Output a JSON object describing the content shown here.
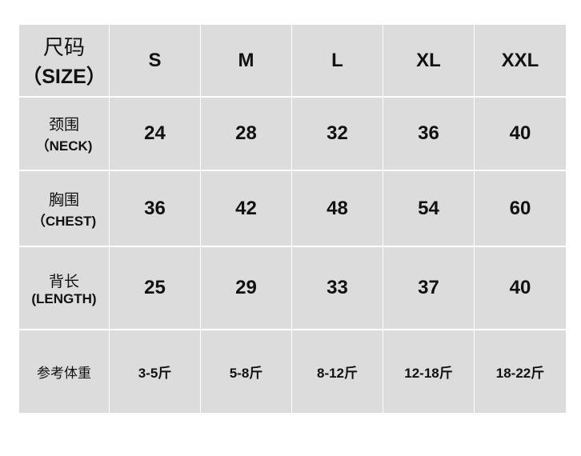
{
  "header": {
    "label_cn": "尺码",
    "label_en": "（SIZE）",
    "sizes": [
      "S",
      "M",
      "L",
      "XL",
      "XXL"
    ]
  },
  "rows": [
    {
      "label_cn": "颈围",
      "label_en": "（NECK)",
      "values": [
        "24",
        "28",
        "32",
        "36",
        "40"
      ]
    },
    {
      "label_cn": "胸围",
      "label_en": "（CHEST)",
      "values": [
        "36",
        "42",
        "48",
        "54",
        "60"
      ]
    },
    {
      "label_cn": "背长",
      "label_en": "(LENGTH)",
      "values": [
        "25",
        "29",
        "33",
        "37",
        "40"
      ]
    },
    {
      "label_cn": "参考体重",
      "label_en": "",
      "values": [
        "3-5斤",
        "5-8斤",
        "8-12斤",
        "12-18斤",
        "18-22斤"
      ]
    }
  ]
}
